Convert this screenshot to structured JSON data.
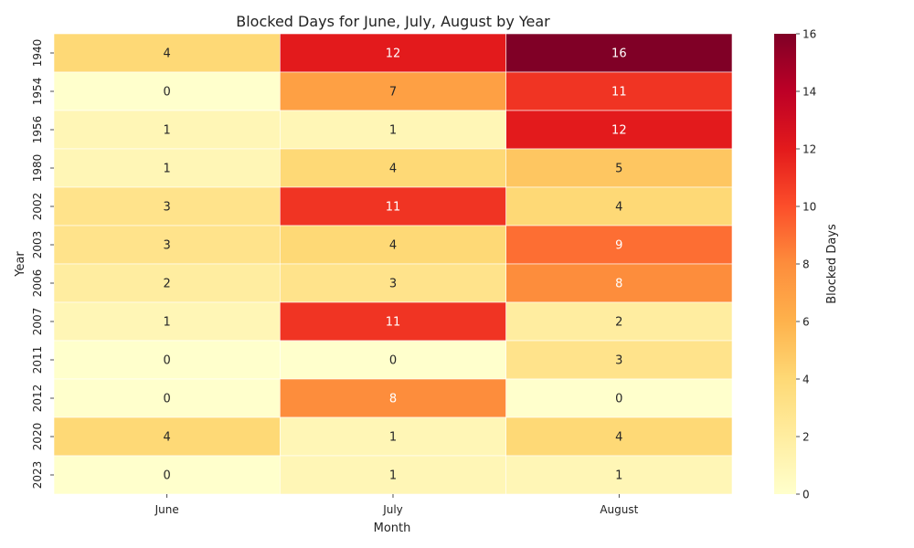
{
  "chart_data": {
    "type": "heatmap",
    "title": "Blocked Days for June, July, August by Year",
    "xlabel": "Month",
    "ylabel": "Year",
    "columns": [
      "June",
      "July",
      "August"
    ],
    "rows": [
      "1940",
      "1954",
      "1956",
      "1980",
      "2002",
      "2003",
      "2006",
      "2007",
      "2011",
      "2012",
      "2020",
      "2023"
    ],
    "values": [
      [
        4,
        12,
        16
      ],
      [
        0,
        7,
        11
      ],
      [
        1,
        1,
        12
      ],
      [
        1,
        4,
        5
      ],
      [
        3,
        11,
        4
      ],
      [
        3,
        4,
        9
      ],
      [
        2,
        3,
        8
      ],
      [
        1,
        11,
        2
      ],
      [
        0,
        0,
        3
      ],
      [
        0,
        8,
        0
      ],
      [
        4,
        1,
        4
      ],
      [
        0,
        1,
        1
      ]
    ],
    "colorbar": {
      "label": "Blocked Days",
      "range": [
        0,
        16
      ],
      "ticks": [
        "0",
        "2",
        "4",
        "6",
        "8",
        "10",
        "12",
        "14",
        "16"
      ],
      "colormap": "YlOrRd"
    },
    "annotations": true,
    "grid": false
  }
}
